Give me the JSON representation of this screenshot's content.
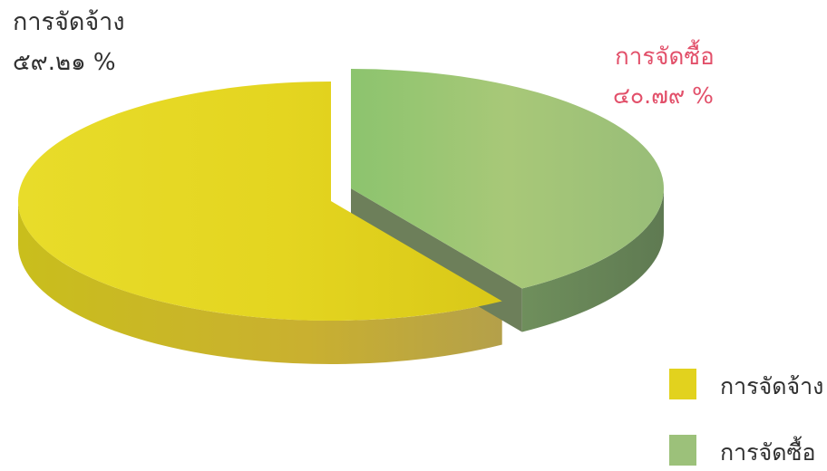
{
  "chart_data": {
    "type": "pie",
    "title": "",
    "slices": [
      {
        "name": "การจัดจ้าง",
        "value": 59.21,
        "label": "๕๙.๒๑ %",
        "color": "#e2d21e"
      },
      {
        "name": "การจัดซื้อ",
        "value": 40.79,
        "label": "๔๐.๗๙ %",
        "color": "#9cc17a"
      }
    ],
    "legend": {
      "placement": "bottom-right",
      "items": [
        "การจัดจ้าง",
        "การจัดซื้อ"
      ]
    },
    "style": "3d-exploded",
    "label_colors": {
      "hire": "#303030",
      "buy": "#e2506a"
    }
  }
}
